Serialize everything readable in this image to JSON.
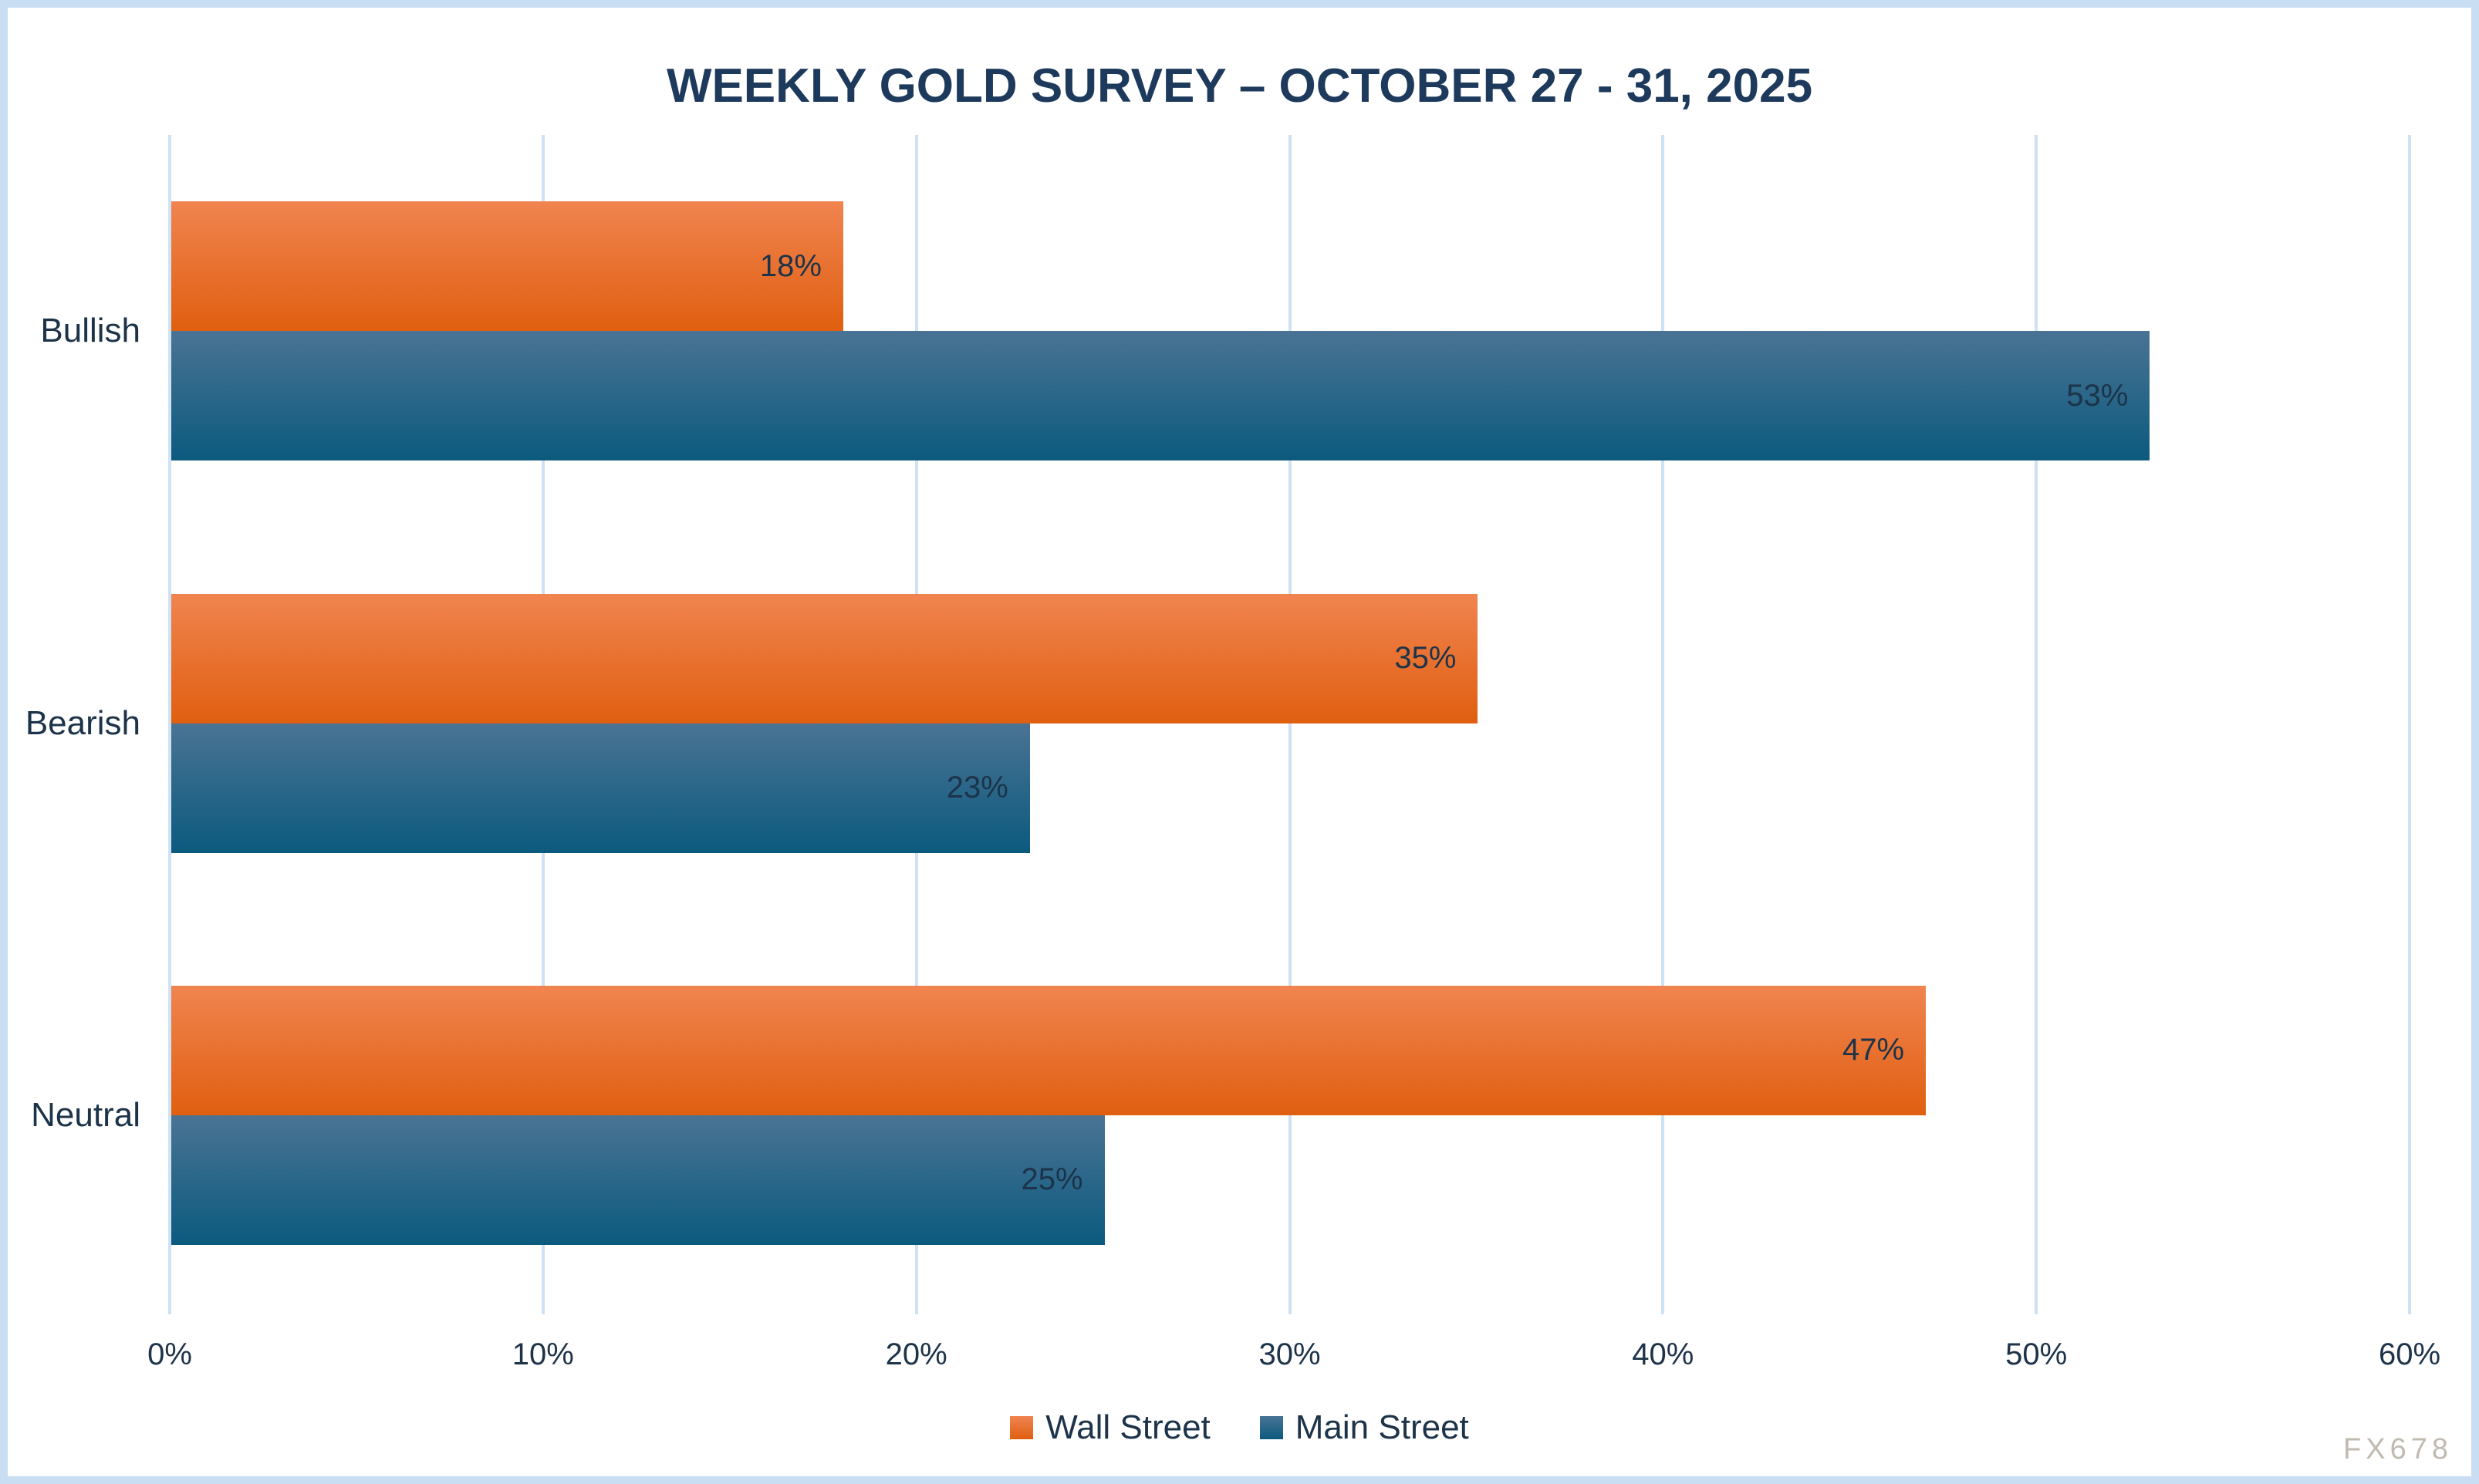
{
  "title": "WEEKLY GOLD SURVEY – OCTOBER 27 - 31, 2025",
  "watermark": "FX678",
  "colors": {
    "title": "#1d3a5c",
    "label": "#1c3349",
    "grid": "#cfe2f3",
    "border": "#c9def2",
    "watermark": "#c0bab0",
    "wall_street_top": "#f08450",
    "wall_street_bottom": "#e05f10",
    "main_street_top": "#4a7394",
    "main_street_bottom": "#0b5a7e"
  },
  "chart_data": {
    "type": "bar",
    "orientation": "horizontal",
    "title": "WEEKLY GOLD SURVEY – OCTOBER 27 - 31, 2025",
    "categories": [
      "Bullish",
      "Bearish",
      "Neutral"
    ],
    "series": [
      {
        "name": "Wall Street",
        "values": [
          18,
          35,
          47
        ]
      },
      {
        "name": "Main Street",
        "values": [
          53,
          23,
          25
        ]
      }
    ],
    "value_suffix": "%",
    "data_labels": [
      [
        "18%",
        "53%"
      ],
      [
        "35%",
        "23%"
      ],
      [
        "47%",
        "25%"
      ]
    ],
    "xlim": [
      0,
      60
    ],
    "xticks": [
      0,
      10,
      20,
      30,
      40,
      50,
      60
    ],
    "xtick_labels": [
      "0%",
      "10%",
      "20%",
      "30%",
      "40%",
      "50%",
      "60%"
    ],
    "grid": true,
    "legend_position": "bottom",
    "legend": [
      "Wall Street",
      "Main Street"
    ]
  }
}
